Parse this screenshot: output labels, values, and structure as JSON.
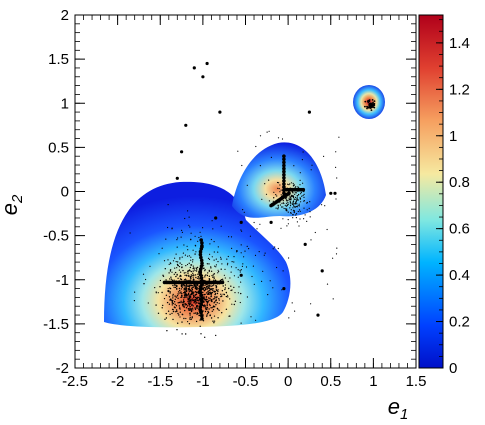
{
  "chart_data": {
    "type": "heatmap",
    "title": "",
    "xlabel": "e",
    "xlabel_sub": "1",
    "ylabel": "e",
    "ylabel_sub": "2",
    "xlim": [
      -2.5,
      1.5
    ],
    "ylim": [
      -2,
      2
    ],
    "x_ticks": [
      -2.5,
      -2,
      -1.5,
      -1,
      -0.5,
      0,
      0.5,
      1,
      1.5
    ],
    "x_tick_labels": [
      "-2.5",
      "-2",
      "-1.5",
      "-1",
      "-0.5",
      "0",
      "0.5",
      "1",
      "1.5"
    ],
    "y_ticks": [
      -2,
      -1.5,
      -1,
      -0.5,
      0,
      0.5,
      1,
      1.5,
      2
    ],
    "y_tick_labels": [
      "-2",
      "-1.5",
      "-1",
      "-0.5",
      "0",
      "0.5",
      "1",
      "1.5",
      "2"
    ],
    "colorbar": {
      "range": [
        0,
        1.52
      ],
      "ticks": [
        0,
        0.2,
        0.4,
        0.6,
        0.8,
        1,
        1.2,
        1.4
      ],
      "tick_labels": [
        "0",
        "0.2",
        "0.4",
        "0.6",
        "0.8",
        "1",
        "1.2",
        "1.4"
      ],
      "colormap": "jet"
    },
    "density_regions": [
      {
        "shape": "dome",
        "x_range": [
          -2.05,
          0.0
        ],
        "y_range": [
          -1.45,
          -0.05
        ],
        "peak": [
          -1.1,
          -1.2
        ],
        "peak_value": 1.45
      },
      {
        "shape": "dome",
        "x_range": [
          -0.35,
          0.45
        ],
        "y_range": [
          -0.3,
          0.6
        ],
        "peak": [
          0.05,
          -0.12
        ],
        "peak_value": 1.1
      },
      {
        "shape": "disc",
        "center": [
          0.97,
          0.98
        ],
        "radius_x": 0.15,
        "radius_y": 0.18,
        "peak_value": 1.5
      }
    ],
    "points_summary": "scatter of sample points overlaid on density, dense near peaks",
    "grid": false,
    "legend": "none"
  }
}
